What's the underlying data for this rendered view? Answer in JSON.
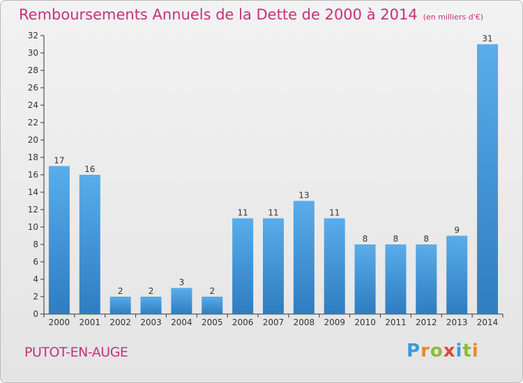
{
  "header": {
    "title": "Remboursements Annuels de la Dette de 2000 à 2014",
    "unit": "(en milliers d'€)"
  },
  "footer": {
    "commune": "PUTOT-EN-AUGE",
    "logo_letters": [
      "P",
      "r",
      "o",
      "x",
      "i",
      "t",
      "i"
    ]
  },
  "colors": {
    "title": "#c6317c",
    "bar_light": "#5aacea",
    "bar_dark": "#2e7dc0",
    "axis": "#333333"
  },
  "chart_data": {
    "type": "bar",
    "title": "Remboursements Annuels de la Dette de 2000 à 2014",
    "subtitle": "(en milliers d'€)",
    "xlabel": "",
    "ylabel": "",
    "categories": [
      "2000",
      "2001",
      "2002",
      "2003",
      "2004",
      "2005",
      "2006",
      "2007",
      "2008",
      "2009",
      "2010",
      "2011",
      "2012",
      "2013",
      "2014"
    ],
    "values": [
      17,
      16,
      2,
      2,
      3,
      2,
      11,
      11,
      13,
      11,
      8,
      8,
      8,
      9,
      31
    ],
    "ylim": [
      0,
      32
    ],
    "yticks": [
      0,
      2,
      4,
      6,
      8,
      10,
      12,
      14,
      16,
      18,
      20,
      22,
      24,
      26,
      28,
      30,
      32
    ],
    "grid": false,
    "legend": "none",
    "data_labels": true
  }
}
